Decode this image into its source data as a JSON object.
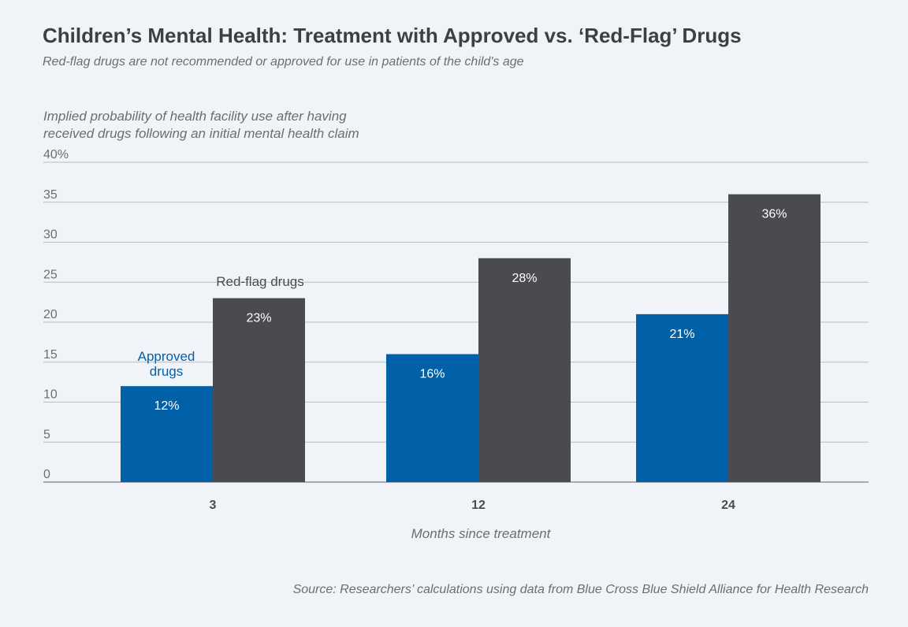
{
  "chart_data": {
    "type": "bar",
    "title": "Children’s Mental Health: Treatment with Approved vs. ‘Red-Flag’ Drugs",
    "subtitle": "Red-flag drugs are not recommended or approved for use in patients of the child's age",
    "ylabel": "Implied probability of health facility use after having received drugs following an initial mental health claim",
    "ylabel_lines": [
      "Implied probability of health facility use after having",
      "received drugs following an initial mental health claim"
    ],
    "xlabel": "Months since treatment",
    "categories": [
      "3",
      "12",
      "24"
    ],
    "series": [
      {
        "name": "Approved drugs",
        "legend_lines": [
          "Approved",
          "drugs"
        ],
        "color": "#0060a8",
        "values": [
          12,
          16,
          21
        ],
        "labels": [
          "12%",
          "16%",
          "21%"
        ]
      },
      {
        "name": "Red-flag drugs",
        "legend_lines": [
          "Red-flag drugs"
        ],
        "color": "#4a4b4f",
        "values": [
          23,
          28,
          36
        ],
        "labels": [
          "23%",
          "28%",
          "36%"
        ]
      }
    ],
    "ylim": [
      0,
      40
    ],
    "yticks": [
      0,
      5,
      10,
      15,
      20,
      25,
      30,
      35,
      40
    ],
    "ytick_labels": [
      "0",
      "5",
      "10",
      "15",
      "20",
      "25",
      "30",
      "35",
      "40%"
    ],
    "grid": true,
    "legend_placement": "inline-annotations",
    "source": "Source: Researchers’ calculations using data from Blue Cross Blue Shield Alliance for Health Research"
  }
}
